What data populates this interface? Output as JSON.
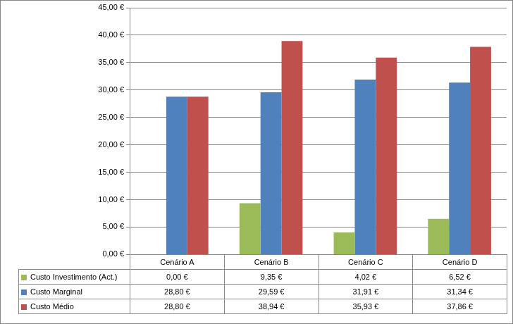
{
  "chart_data": {
    "type": "bar",
    "categories": [
      "Cenário A",
      "Cenário B",
      "Cenário C",
      "Cenário D"
    ],
    "series": [
      {
        "name": "Custo Investimento (Act.)",
        "color": "#9BBB59",
        "values": [
          0,
          9.35,
          4.02,
          6.52
        ],
        "value_labels": [
          "0,00 €",
          "9,35 €",
          "4,02 €",
          "6,52 €"
        ]
      },
      {
        "name": "Custo Marginal",
        "color": "#4F81BD",
        "values": [
          28.8,
          29.59,
          31.91,
          31.34
        ],
        "value_labels": [
          "28,80 €",
          "29,59 €",
          "31,91 €",
          "31,34 €"
        ]
      },
      {
        "name": "Custo Médio",
        "color": "#C0504D",
        "values": [
          28.8,
          38.94,
          35.93,
          37.86
        ],
        "value_labels": [
          "28,80 €",
          "38,94 €",
          "35,93 €",
          "37,86 €"
        ]
      }
    ],
    "ylim": [
      0,
      45
    ],
    "yticks": [
      {
        "value": 0,
        "label": "0,00 €"
      },
      {
        "value": 5,
        "label": "5,00 €"
      },
      {
        "value": 10,
        "label": "10,00 €"
      },
      {
        "value": 15,
        "label": "15,00 €"
      },
      {
        "value": 20,
        "label": "20,00 €"
      },
      {
        "value": 25,
        "label": "25,00 €"
      },
      {
        "value": 30,
        "label": "30,00 €"
      },
      {
        "value": 35,
        "label": "35,00 €"
      },
      {
        "value": 40,
        "label": "40,00 €"
      },
      {
        "value": 45,
        "label": "45,00 €"
      }
    ],
    "grid": true
  }
}
